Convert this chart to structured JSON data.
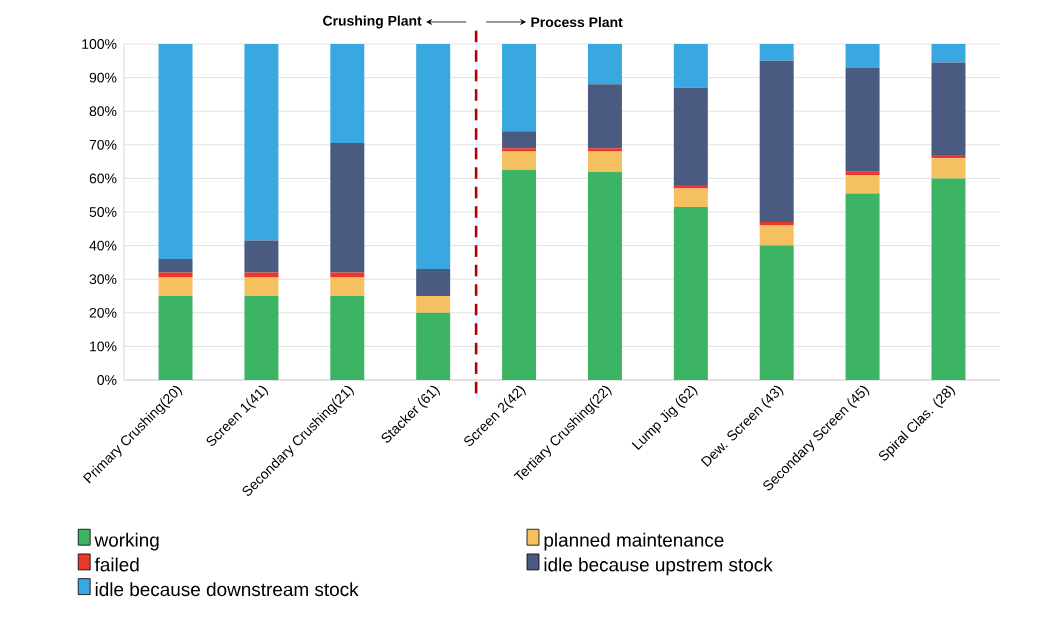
{
  "chart_data": {
    "type": "bar",
    "stacked": true,
    "grid": "y",
    "legend": "bottom",
    "categories": [
      "Primary Crushing(20)",
      "Screen 1(41)",
      "Secondary Crushing(21)",
      "Stacker (61)",
      "Screen 2(42)",
      "Tertiary Crushing(22)",
      "Lump Jig (62)",
      "Dew. Screen (43)",
      "Secondary Screen (45)",
      "Spiral Clas. (28)"
    ],
    "series": [
      {
        "name": "working",
        "color": "#3cb464",
        "values": [
          25,
          25,
          25,
          20,
          62.5,
          62,
          51.5,
          40,
          55.5,
          60
        ]
      },
      {
        "name": "planned maintenance",
        "color": "#f5c060",
        "values": [
          5.5,
          5.5,
          5.5,
          5,
          5.5,
          6,
          5.5,
          6,
          5.5,
          6
        ]
      },
      {
        "name": "failed",
        "color": "#e8392c",
        "values": [
          1.5,
          1.5,
          1.5,
          0,
          1,
          1,
          1,
          1,
          1,
          1
        ]
      },
      {
        "name": "idle because upstrem stock",
        "color": "#4a5a80",
        "values": [
          4,
          9.5,
          38.5,
          8,
          5,
          19,
          29,
          48,
          31,
          27.5
        ]
      },
      {
        "name": "idle because downstream stock",
        "color": "#39a8e0",
        "values": [
          64,
          58.5,
          29.5,
          67,
          26,
          12,
          13,
          5,
          7,
          5.5
        ]
      }
    ],
    "ylim": [
      0,
      100
    ],
    "yticks": [
      {
        "value": 0,
        "label": "0%"
      },
      {
        "value": 10,
        "label": "10%"
      },
      {
        "value": 20,
        "label": "20%"
      },
      {
        "value": 30,
        "label": "30%"
      },
      {
        "value": 40,
        "label": "40%"
      },
      {
        "value": 50,
        "label": "50%"
      },
      {
        "value": 60,
        "label": "60%"
      },
      {
        "value": 70,
        "label": "70%"
      },
      {
        "value": 80,
        "label": "80%"
      },
      {
        "value": 90,
        "label": "90%"
      },
      {
        "value": 100,
        "label": "100%"
      }
    ],
    "annotations": [
      "Crushing Plant",
      "Process Plant"
    ]
  }
}
